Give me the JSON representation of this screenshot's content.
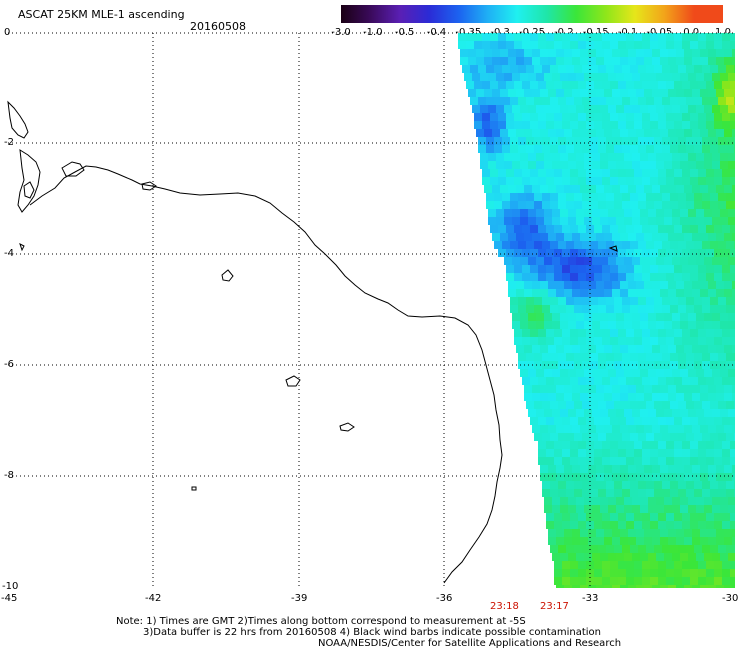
{
  "title": "ASCAT 25KM MLE-1 ascending",
  "date": "20160508",
  "colorbar": {
    "labels": [
      "-3.0",
      "-1.0",
      "-0.5",
      "-0.4",
      "-0.35",
      "-0.3",
      "-0.25",
      "-0.2",
      "-0.15",
      "-0.1",
      "-0.05",
      "0.0",
      "1.0"
    ],
    "colors": [
      "#1a0014",
      "#3a0a5a",
      "#5a1fb4",
      "#2b2bd6",
      "#1c63f0",
      "#1fb0f5",
      "#1ff0f0",
      "#1fe6a8",
      "#3ae63a",
      "#8fe61a",
      "#e6e61a",
      "#f2a51a",
      "#f04a1a"
    ]
  },
  "axes": {
    "lat_labels": [
      "0",
      "-2",
      "-4",
      "-6",
      "-8",
      "-10"
    ],
    "lon_labels": [
      "-45",
      "-42",
      "-39",
      "-36",
      "-33",
      "-30"
    ]
  },
  "times": [
    "23:18",
    "23:17"
  ],
  "notes": [
    "Note: 1) Times are GMT 2)Times along bottom correspond to measurement at -5S",
    "3)Data buffer is 22 hrs from 20160508 4) Black wind barbs indicate possible contamination",
    "NOAA/NESDIS/Center for Satellite Applications and Research"
  ]
}
